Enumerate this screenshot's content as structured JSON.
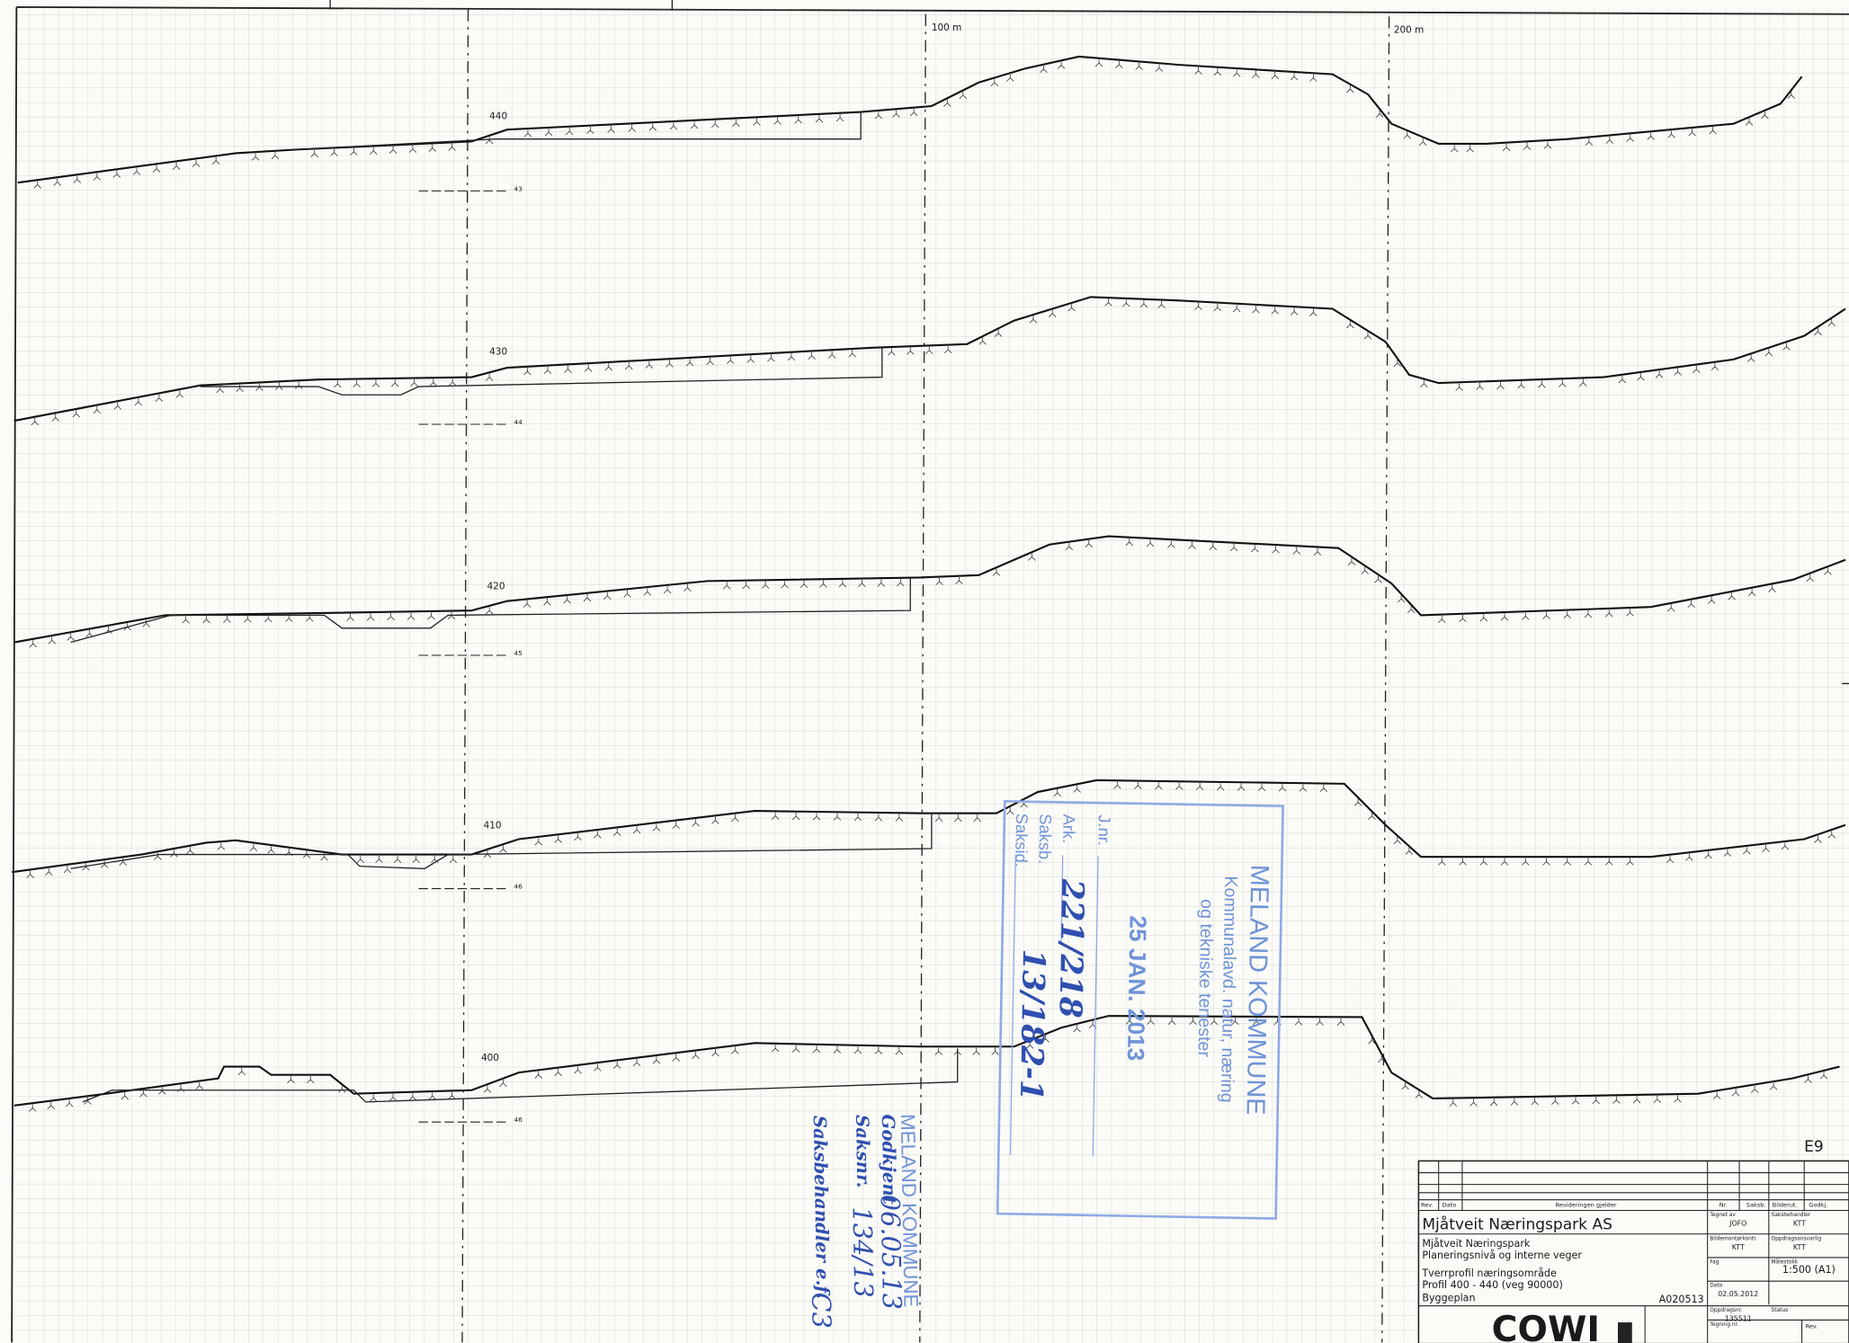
{
  "drawing": {
    "scale_marks": [
      "100 m",
      "200 m"
    ],
    "sheet": "E9"
  },
  "profiles": [
    {
      "label": "440",
      "ref": "43"
    },
    {
      "label": "430",
      "ref": "44"
    },
    {
      "label": "420",
      "ref": "45"
    },
    {
      "label": "410",
      "ref": "46"
    },
    {
      "label": "400",
      "ref": "46"
    }
  ],
  "title_block": {
    "header": [
      "Rev.",
      "Dato",
      "Revideringen gjelder",
      "Nr.",
      "Saksb.",
      "Bilderut.",
      "Godkj."
    ],
    "client": "Mjåtveit Næringspark AS",
    "project": [
      "Mjåtveit Næringspark",
      "Planeringsnivå og interne veger"
    ],
    "drawing_title": [
      "Tverrprofil næringsområde",
      "Profil 400 - 440 (veg 90000)",
      "Byggeplan"
    ],
    "doc_code": "A020513",
    "fields": [
      {
        "label": "Tegnet av",
        "value": "JOFO"
      },
      {
        "label": "Saksbehandler",
        "value": "KTT"
      },
      {
        "label": "Bildemontørkontr.",
        "value": "KTT"
      },
      {
        "label": "Oppdragsansvarlig",
        "value": "KTT"
      },
      {
        "label": "Fag",
        "value": ""
      },
      {
        "label": "Målestokk",
        "value": "1:500 (A1)"
      },
      {
        "label": "Dato",
        "value": "02.05.2012"
      },
      {
        "label": "Oppdragsnr.",
        "value": "135511"
      },
      {
        "label": "Status",
        "value": ""
      },
      {
        "label": "Tegning nr.",
        "value": ""
      }
    ],
    "company": "COWI",
    "rev_label": "Rev."
  },
  "stamps": {
    "received": {
      "org": "MELAND KOMMUNE",
      "dept": [
        "Kommunalavd. natur, næring",
        "og tekniske tenester"
      ],
      "date": "25 JAN. 2013",
      "fields": [
        "J.nr.",
        "Ark.",
        "Saksb.",
        "Saksid."
      ],
      "handwritten": [
        "221/218",
        "13/182-1"
      ]
    },
    "approved": {
      "org": "MELAND KOMMUNE",
      "lines": [
        "Godkjent",
        "Saksnr.",
        "Saksbehandler e.f."
      ],
      "handwritten": [
        "06.05.13",
        "134/13",
        "C3"
      ]
    }
  }
}
